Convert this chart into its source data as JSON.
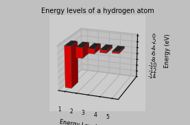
{
  "title": "Energy levels of a hydrogen atom",
  "xlabel": "Energy Level",
  "ylabel": "Energy (eV)",
  "categories": [
    1,
    2,
    3,
    4,
    5
  ],
  "values": [
    -13.6,
    -3.4,
    -1.511,
    -0.85,
    -0.544
  ],
  "ylim": [
    -14,
    0.5
  ],
  "yticks": [
    0,
    -2,
    -4,
    -6,
    -8,
    -10,
    -12,
    -14
  ],
  "bar_face_color": "#dd0000",
  "bar_top_color": "#222222",
  "bar_side_color": "#880000",
  "background_color": "#c0c0c0",
  "plot_bg_color": "#cccccc",
  "wall_color": "#b8b8b8",
  "grid_color": "#999999",
  "title_fontsize": 7,
  "axis_fontsize": 6,
  "tick_fontsize": 5.5,
  "bar_width": 0.55,
  "bar_depth": 0.45
}
